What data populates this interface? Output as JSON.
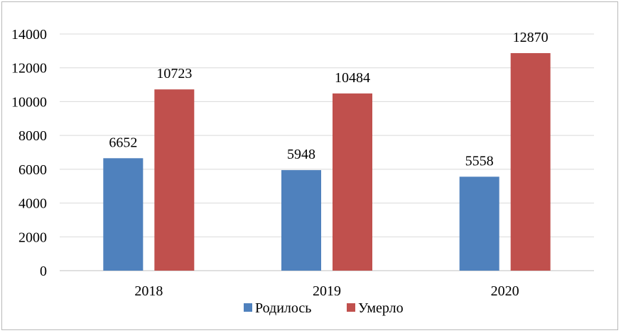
{
  "chart_data": {
    "type": "bar",
    "categories": [
      "2018",
      "2019",
      "2020"
    ],
    "series": [
      {
        "name": "Родилось",
        "values": [
          6652,
          5948,
          5558
        ],
        "color": "#4F81BD"
      },
      {
        "name": "Умерло",
        "values": [
          10723,
          10484,
          12870
        ],
        "color": "#C0504D"
      }
    ],
    "yticks": [
      "0",
      "2000",
      "4000",
      "6000",
      "8000",
      "10000",
      "12000",
      "14000"
    ],
    "ylim": [
      0,
      14000
    ],
    "grid": true,
    "legend_position": "bottom",
    "gridline_color": "#d9d9d9"
  }
}
